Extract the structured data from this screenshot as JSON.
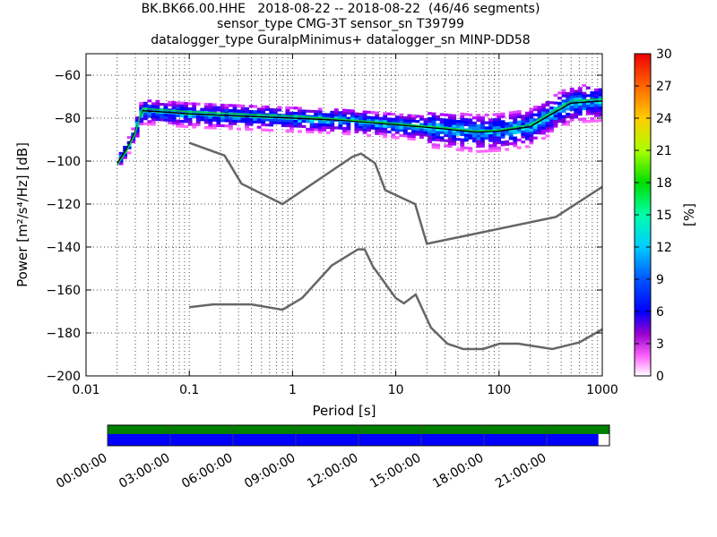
{
  "title": {
    "line1": "BK.BK66.00.HHE   2018-08-22 -- 2018-08-22  (46/46 segments)",
    "line2": "sensor_type CMG-3T sensor_sn T39799",
    "line3": "datalogger_type GuralpMinimus+ datalogger_sn MINP-DD58"
  },
  "chart_data": [
    {
      "type": "heatmap",
      "xlabel": "Period [s]",
      "ylabel": "Power [m²/s⁴/Hz] [dB]",
      "x_scale": "log",
      "xlim": [
        0.01,
        1000
      ],
      "ylim": [
        -200,
        -50
      ],
      "xticks": [
        "0.01",
        "0.1",
        "1",
        "10",
        "100",
        "1000"
      ],
      "yticks": [
        "-60",
        "-80",
        "-100",
        "-120",
        "-140",
        "-160",
        "-180",
        "-200"
      ],
      "colorbar": {
        "label": "[%]",
        "range": [
          0,
          30
        ],
        "ticks": [
          "0",
          "3",
          "6",
          "9",
          "12",
          "15",
          "18",
          "21",
          "24",
          "27",
          "30"
        ]
      },
      "series": [
        {
          "role": "high-noise-model",
          "color": "#666666",
          "x": [
            0.1,
            0.22,
            0.32,
            0.8,
            3.8,
            4.6,
            6.3,
            7.9,
            15.4,
            20,
            354.8,
            1000
          ],
          "y": [
            -91.5,
            -97.4,
            -110.5,
            -120,
            -98,
            -96.5,
            -101,
            -113.5,
            -120,
            -138.5,
            -126,
            -112
          ]
        },
        {
          "role": "low-noise-model",
          "color": "#666666",
          "x": [
            0.1,
            0.17,
            0.4,
            0.8,
            1.24,
            2.4,
            4.3,
            5,
            6,
            10,
            12,
            15.6,
            21.9,
            31.6,
            45,
            70,
            101,
            154,
            328,
            600,
            1000
          ],
          "y": [
            -168,
            -166.7,
            -166.7,
            -169.2,
            -163.7,
            -148.6,
            -141.1,
            -141.1,
            -149,
            -163.8,
            -166.2,
            -162.1,
            -177.5,
            -185,
            -187.5,
            -187.5,
            -185,
            -185,
            -187.5,
            -184.4,
            -178.3
          ]
        },
        {
          "role": "mean-psd",
          "color": "#000000",
          "x": [
            0.02,
            0.025,
            0.03,
            0.035,
            0.05,
            0.1,
            0.3,
            1,
            3,
            10,
            30,
            60,
            100,
            200,
            300,
            500,
            1000
          ],
          "y": [
            -101,
            -94,
            -86,
            -76.5,
            -77,
            -78,
            -79,
            -80,
            -81,
            -83,
            -85,
            -86.5,
            -86,
            -84,
            -79,
            -73,
            -72
          ]
        },
        {
          "role": "mode-psd",
          "color": "#00cc44",
          "x": [
            0.02,
            0.025,
            0.03,
            0.035,
            0.05,
            0.1,
            0.3,
            1,
            3,
            10,
            30,
            60,
            100,
            200,
            300,
            500,
            1000
          ],
          "y": [
            -102,
            -95,
            -87,
            -75.5,
            -76,
            -77,
            -78,
            -79,
            -80.5,
            -82.5,
            -84.5,
            -86,
            -85.5,
            -83,
            -78,
            -72,
            -71
          ]
        }
      ]
    },
    {
      "type": "bar",
      "timeline_ticks": [
        "00:00:00",
        "03:00:00",
        "06:00:00",
        "09:00:00",
        "12:00:00",
        "15:00:00",
        "18:00:00",
        "21:00:00"
      ],
      "rows": [
        {
          "role": "data-availability",
          "color": "#008000",
          "coverage": 1.0
        },
        {
          "role": "psd-segments",
          "color": "#0000ff",
          "coverage": 0.978
        }
      ]
    }
  ]
}
